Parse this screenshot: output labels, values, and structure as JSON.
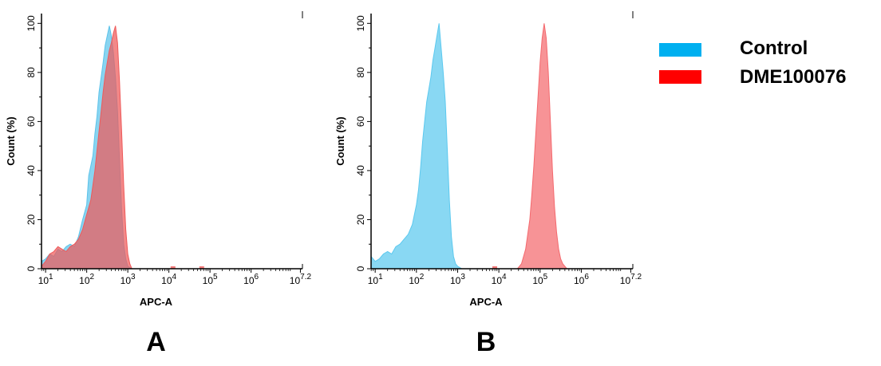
{
  "chart_data": [
    {
      "type": "area",
      "panel_label": "A",
      "xlabel": "APC-A",
      "ylabel": "Count  (%)",
      "xscale": "log",
      "xlim_log10": [
        0.9,
        7.25
      ],
      "ylim": [
        0,
        104
      ],
      "x_ticks": [
        {
          "base": "10",
          "exp": "1"
        },
        {
          "base": "10",
          "exp": "2"
        },
        {
          "base": "10",
          "exp": "3"
        },
        {
          "base": "10",
          "exp": "4"
        },
        {
          "base": "10",
          "exp": "5"
        },
        {
          "base": "10",
          "exp": "6"
        },
        {
          "base": "10",
          "exp": "7.2"
        }
      ],
      "y_ticks": [
        "0",
        "20",
        "40",
        "60",
        "80",
        "100"
      ],
      "grid": false,
      "series": [
        {
          "name": "Control",
          "color": "#5cc3ea",
          "points": [
            [
              0.9,
              3
            ],
            [
              1.0,
              4
            ],
            [
              1.1,
              6
            ],
            [
              1.2,
              5
            ],
            [
              1.3,
              8
            ],
            [
              1.4,
              7
            ],
            [
              1.5,
              9
            ],
            [
              1.6,
              10
            ],
            [
              1.7,
              9
            ],
            [
              1.8,
              13
            ],
            [
              1.9,
              20
            ],
            [
              2.0,
              26
            ],
            [
              2.05,
              38
            ],
            [
              2.1,
              42
            ],
            [
              2.15,
              46
            ],
            [
              2.2,
              55
            ],
            [
              2.25,
              62
            ],
            [
              2.3,
              72
            ],
            [
              2.35,
              78
            ],
            [
              2.4,
              84
            ],
            [
              2.45,
              91
            ],
            [
              2.5,
              95
            ],
            [
              2.55,
              99
            ],
            [
              2.6,
              95
            ],
            [
              2.65,
              88
            ],
            [
              2.7,
              78
            ],
            [
              2.75,
              64
            ],
            [
              2.8,
              44
            ],
            [
              2.85,
              24
            ],
            [
              2.9,
              10
            ],
            [
              2.95,
              4
            ],
            [
              3.0,
              1
            ],
            [
              3.1,
              0
            ]
          ]
        },
        {
          "name": "DME100076",
          "color": "#ee5a5a",
          "points": [
            [
              0.9,
              1
            ],
            [
              1.0,
              3
            ],
            [
              1.1,
              6
            ],
            [
              1.2,
              7
            ],
            [
              1.3,
              9
            ],
            [
              1.4,
              8
            ],
            [
              1.5,
              7
            ],
            [
              1.6,
              9
            ],
            [
              1.7,
              10
            ],
            [
              1.8,
              12
            ],
            [
              1.9,
              16
            ],
            [
              2.0,
              22
            ],
            [
              2.05,
              25
            ],
            [
              2.1,
              28
            ],
            [
              2.15,
              34
            ],
            [
              2.2,
              40
            ],
            [
              2.25,
              48
            ],
            [
              2.3,
              56
            ],
            [
              2.35,
              64
            ],
            [
              2.4,
              72
            ],
            [
              2.45,
              79
            ],
            [
              2.5,
              84
            ],
            [
              2.55,
              89
            ],
            [
              2.6,
              92
            ],
            [
              2.65,
              96
            ],
            [
              2.7,
              99
            ],
            [
              2.75,
              92
            ],
            [
              2.8,
              76
            ],
            [
              2.85,
              56
            ],
            [
              2.9,
              34
            ],
            [
              2.95,
              16
            ],
            [
              3.0,
              6
            ],
            [
              3.05,
              2
            ],
            [
              3.1,
              0
            ]
          ]
        }
      ],
      "minor_events": [
        [
          4.1,
          1
        ],
        [
          4.8,
          1
        ]
      ]
    },
    {
      "type": "area",
      "panel_label": "B",
      "xlabel": "APC-A",
      "ylabel": "Count  (%)",
      "xscale": "log",
      "xlim_log10": [
        0.9,
        7.25
      ],
      "ylim": [
        0,
        104
      ],
      "x_ticks": [
        {
          "base": "10",
          "exp": "1"
        },
        {
          "base": "10",
          "exp": "2"
        },
        {
          "base": "10",
          "exp": "3"
        },
        {
          "base": "10",
          "exp": "4"
        },
        {
          "base": "10",
          "exp": "5"
        },
        {
          "base": "10",
          "exp": "6"
        },
        {
          "base": "10",
          "exp": "7.2"
        }
      ],
      "y_ticks": [
        "0",
        "20",
        "40",
        "60",
        "80",
        "100"
      ],
      "grid": false,
      "series": [
        {
          "name": "Control",
          "color": "#5cc9ef",
          "points": [
            [
              0.9,
              5
            ],
            [
              1.0,
              3
            ],
            [
              1.1,
              4
            ],
            [
              1.2,
              6
            ],
            [
              1.3,
              7
            ],
            [
              1.4,
              6
            ],
            [
              1.5,
              9
            ],
            [
              1.6,
              10
            ],
            [
              1.7,
              12
            ],
            [
              1.8,
              14
            ],
            [
              1.9,
              18
            ],
            [
              2.0,
              26
            ],
            [
              2.05,
              32
            ],
            [
              2.1,
              41
            ],
            [
              2.15,
              52
            ],
            [
              2.2,
              60
            ],
            [
              2.25,
              68
            ],
            [
              2.3,
              73
            ],
            [
              2.35,
              78
            ],
            [
              2.4,
              85
            ],
            [
              2.45,
              90
            ],
            [
              2.5,
              95
            ],
            [
              2.55,
              100
            ],
            [
              2.6,
              90
            ],
            [
              2.65,
              80
            ],
            [
              2.7,
              68
            ],
            [
              2.75,
              48
            ],
            [
              2.8,
              28
            ],
            [
              2.85,
              13
            ],
            [
              2.9,
              5
            ],
            [
              2.95,
              2
            ],
            [
              3.0,
              1
            ],
            [
              3.1,
              0
            ]
          ]
        },
        {
          "name": "DME100076",
          "color": "#f4696e",
          "points": [
            [
              4.45,
              0
            ],
            [
              4.55,
              2
            ],
            [
              4.6,
              5
            ],
            [
              4.65,
              8
            ],
            [
              4.7,
              14
            ],
            [
              4.75,
              20
            ],
            [
              4.8,
              30
            ],
            [
              4.85,
              42
            ],
            [
              4.9,
              56
            ],
            [
              4.95,
              70
            ],
            [
              5.0,
              84
            ],
            [
              5.05,
              94
            ],
            [
              5.1,
              100
            ],
            [
              5.15,
              94
            ],
            [
              5.2,
              80
            ],
            [
              5.25,
              60
            ],
            [
              5.3,
              40
            ],
            [
              5.35,
              25
            ],
            [
              5.4,
              15
            ],
            [
              5.45,
              8
            ],
            [
              5.5,
              4
            ],
            [
              5.55,
              2
            ],
            [
              5.65,
              0
            ]
          ]
        }
      ],
      "minor_events": [
        [
          3.9,
          1
        ]
      ]
    }
  ],
  "legend": {
    "placement": "right",
    "items": [
      {
        "label": "Control",
        "color": "#00b0f0"
      },
      {
        "label": "DME100076",
        "color": "#ff0000"
      }
    ]
  }
}
